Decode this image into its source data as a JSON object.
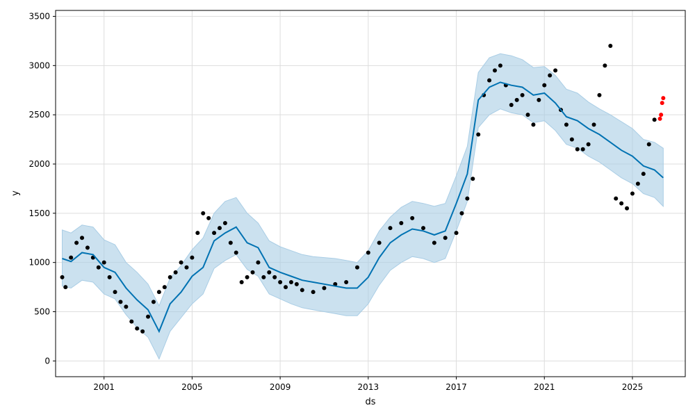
{
  "chart_data": {
    "type": "line",
    "title": "",
    "xlabel": "ds",
    "ylabel": "y",
    "x_ticks": [
      2001,
      2005,
      2009,
      2013,
      2017,
      2021,
      2025
    ],
    "y_ticks": [
      0,
      500,
      1000,
      1500,
      2000,
      2500,
      3000,
      3500
    ],
    "xlim": [
      1998.8,
      2027.4
    ],
    "ylim": [
      -160,
      3560
    ],
    "grid": true,
    "colors": {
      "observed": "#000000",
      "forecast": "#0072B2",
      "interval": "#A9CDE5",
      "new_points": "#FF0000"
    },
    "series": [
      {
        "role": "observed",
        "style": "scatter",
        "x": [
          1999.1,
          1999.25,
          1999.5,
          1999.75,
          2000.0,
          2000.25,
          2000.5,
          2000.75,
          2001.0,
          2001.25,
          2001.5,
          2001.75,
          2002.0,
          2002.25,
          2002.5,
          2002.75,
          2003.0,
          2003.25,
          2003.5,
          2003.75,
          2004.0,
          2004.25,
          2004.5,
          2004.75,
          2005.0,
          2005.25,
          2005.5,
          2005.75,
          2006.0,
          2006.25,
          2006.5,
          2006.75,
          2007.0,
          2007.25,
          2007.5,
          2007.75,
          2008.0,
          2008.25,
          2008.5,
          2008.75,
          2009.0,
          2009.25,
          2009.5,
          2009.75,
          2010.0,
          2010.5,
          2011.0,
          2011.5,
          2012.0,
          2012.5,
          2013.0,
          2013.5,
          2014.0,
          2014.5,
          2015.0,
          2015.5,
          2016.0,
          2016.5,
          2017.0,
          2017.25,
          2017.5,
          2017.75,
          2018.0,
          2018.25,
          2018.5,
          2018.75,
          2019.0,
          2019.25,
          2019.5,
          2019.75,
          2020.0,
          2020.25,
          2020.5,
          2020.75,
          2021.0,
          2021.25,
          2021.5,
          2021.75,
          2022.0,
          2022.25,
          2022.5,
          2022.75,
          2023.0,
          2023.25,
          2023.5,
          2023.75,
          2024.0,
          2024.25,
          2024.5,
          2024.75,
          2025.0,
          2025.25,
          2025.5,
          2025.75,
          2026.0
        ],
        "y": [
          850,
          750,
          1050,
          1200,
          1250,
          1150,
          1050,
          950,
          1000,
          850,
          700,
          600,
          550,
          400,
          330,
          300,
          450,
          600,
          700,
          750,
          850,
          900,
          1000,
          950,
          1050,
          1300,
          1500,
          1450,
          1300,
          1350,
          1400,
          1200,
          1100,
          800,
          850,
          900,
          1000,
          850,
          900,
          850,
          800,
          750,
          800,
          780,
          720,
          700,
          740,
          780,
          800,
          950,
          1100,
          1200,
          1350,
          1400,
          1450,
          1350,
          1200,
          1250,
          1300,
          1500,
          1650,
          1850,
          2300,
          2700,
          2850,
          2950,
          3000,
          2800,
          2600,
          2650,
          2700,
          2500,
          2400,
          2650,
          2800,
          2900,
          2950,
          2550,
          2400,
          2250,
          2150,
          2150,
          2200,
          2400,
          2700,
          3000,
          3200,
          1650,
          1600,
          1550,
          1700,
          1800,
          1900,
          2200,
          2450
        ]
      },
      {
        "role": "new_points",
        "style": "scatter",
        "x": [
          2026.25,
          2026.3,
          2026.35,
          2026.4
        ],
        "y": [
          2460,
          2500,
          2620,
          2670
        ]
      },
      {
        "role": "forecast",
        "style": "line",
        "x": [
          1999.1,
          1999.5,
          2000.0,
          2000.5,
          2001.0,
          2001.5,
          2002.0,
          2002.5,
          2003.0,
          2003.5,
          2004.0,
          2004.5,
          2005.0,
          2005.5,
          2006.0,
          2006.5,
          2007.0,
          2007.5,
          2008.0,
          2008.5,
          2009.0,
          2009.5,
          2010.0,
          2010.5,
          2011.0,
          2011.5,
          2012.0,
          2012.5,
          2013.0,
          2013.5,
          2014.0,
          2014.5,
          2015.0,
          2015.5,
          2016.0,
          2016.5,
          2017.0,
          2017.5,
          2018.0,
          2018.5,
          2019.0,
          2019.5,
          2020.0,
          2020.5,
          2021.0,
          2021.5,
          2022.0,
          2022.5,
          2023.0,
          2023.5,
          2024.0,
          2024.5,
          2025.0,
          2025.5,
          2026.0,
          2026.4
        ],
        "y": [
          1040,
          1010,
          1100,
          1080,
          950,
          900,
          740,
          620,
          520,
          300,
          580,
          700,
          860,
          950,
          1220,
          1300,
          1360,
          1200,
          1150,
          950,
          900,
          860,
          820,
          800,
          780,
          760,
          740,
          740,
          850,
          1050,
          1200,
          1280,
          1340,
          1320,
          1280,
          1320,
          1600,
          1900,
          2650,
          2780,
          2830,
          2800,
          2780,
          2700,
          2720,
          2620,
          2480,
          2440,
          2360,
          2300,
          2220,
          2140,
          2080,
          1980,
          1940,
          1860
        ]
      },
      {
        "role": "interval_upper",
        "style": "band",
        "x": [
          1999.1,
          1999.5,
          2000.0,
          2000.5,
          2001.0,
          2001.5,
          2002.0,
          2002.5,
          2003.0,
          2003.5,
          2004.0,
          2004.5,
          2005.0,
          2005.5,
          2006.0,
          2006.5,
          2007.0,
          2007.5,
          2008.0,
          2008.5,
          2009.0,
          2009.5,
          2010.0,
          2010.5,
          2011.0,
          2011.5,
          2012.0,
          2012.5,
          2013.0,
          2013.5,
          2014.0,
          2014.5,
          2015.0,
          2015.5,
          2016.0,
          2016.5,
          2017.0,
          2017.5,
          2018.0,
          2018.5,
          2019.0,
          2019.5,
          2020.0,
          2020.5,
          2021.0,
          2021.5,
          2022.0,
          2022.5,
          2023.0,
          2023.5,
          2024.0,
          2024.5,
          2025.0,
          2025.5,
          2026.0,
          2026.4
        ],
        "y": [
          1330,
          1300,
          1380,
          1360,
          1230,
          1180,
          1000,
          900,
          780,
          560,
          840,
          970,
          1130,
          1250,
          1500,
          1620,
          1660,
          1500,
          1400,
          1220,
          1160,
          1120,
          1080,
          1060,
          1050,
          1040,
          1020,
          1000,
          1120,
          1320,
          1460,
          1560,
          1620,
          1600,
          1570,
          1600,
          1880,
          2180,
          2930,
          3080,
          3120,
          3100,
          3060,
          2980,
          2990,
          2900,
          2760,
          2720,
          2630,
          2560,
          2500,
          2430,
          2360,
          2250,
          2220,
          2160
        ]
      },
      {
        "role": "interval_lower",
        "style": "band",
        "x": [
          1999.1,
          1999.5,
          2000.0,
          2000.5,
          2001.0,
          2001.5,
          2002.0,
          2002.5,
          2003.0,
          2003.5,
          2004.0,
          2004.5,
          2005.0,
          2005.5,
          2006.0,
          2006.5,
          2007.0,
          2007.5,
          2008.0,
          2008.5,
          2009.0,
          2009.5,
          2010.0,
          2010.5,
          2011.0,
          2011.5,
          2012.0,
          2012.5,
          2013.0,
          2013.5,
          2014.0,
          2014.5,
          2015.0,
          2015.5,
          2016.0,
          2016.5,
          2017.0,
          2017.5,
          2018.0,
          2018.5,
          2019.0,
          2019.5,
          2020.0,
          2020.5,
          2021.0,
          2021.5,
          2022.0,
          2022.5,
          2023.0,
          2023.5,
          2024.0,
          2024.5,
          2025.0,
          2025.5,
          2026.0,
          2026.4
        ],
        "y": [
          760,
          740,
          820,
          800,
          680,
          630,
          470,
          340,
          240,
          20,
          300,
          440,
          580,
          680,
          940,
          1020,
          1080,
          930,
          860,
          680,
          630,
          580,
          540,
          520,
          500,
          480,
          460,
          460,
          580,
          770,
          920,
          1000,
          1060,
          1040,
          1000,
          1040,
          1320,
          1620,
          2370,
          2500,
          2560,
          2520,
          2500,
          2420,
          2440,
          2340,
          2200,
          2160,
          2080,
          2020,
          1940,
          1860,
          1800,
          1700,
          1660,
          1570
        ]
      }
    ]
  }
}
